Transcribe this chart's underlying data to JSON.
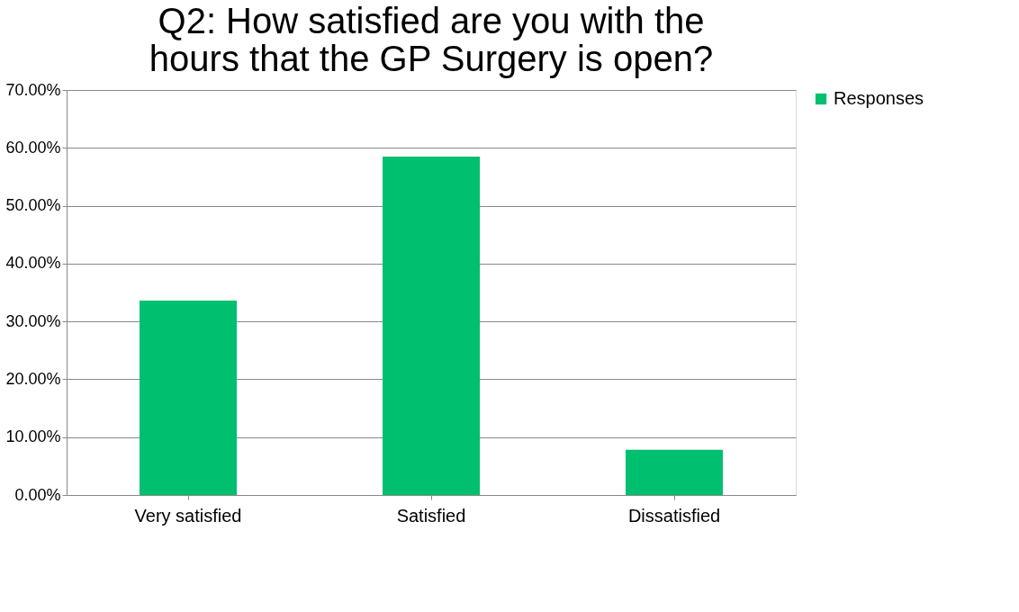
{
  "chart_data": {
    "type": "bar",
    "title": "Q2: How satisfied are you with the hours that the GP Surgery is open?",
    "categories": [
      "Very satisfied",
      "Satisfied",
      "Dissatisfied"
    ],
    "series": [
      {
        "name": "Responses",
        "color": "#00bf6f",
        "values": [
          33.6,
          58.5,
          7.8
        ]
      }
    ],
    "ylim": [
      0,
      70
    ],
    "yticks": [
      {
        "value": 0,
        "label": "0.00%"
      },
      {
        "value": 10,
        "label": "10.00%"
      },
      {
        "value": 20,
        "label": "20.00%"
      },
      {
        "value": 30,
        "label": "30.00%"
      },
      {
        "value": 40,
        "label": "40.00%"
      },
      {
        "value": 50,
        "label": "50.00%"
      },
      {
        "value": 60,
        "label": "60.00%"
      },
      {
        "value": 70,
        "label": "70.00%"
      }
    ],
    "grid": "y",
    "legend": "right"
  }
}
